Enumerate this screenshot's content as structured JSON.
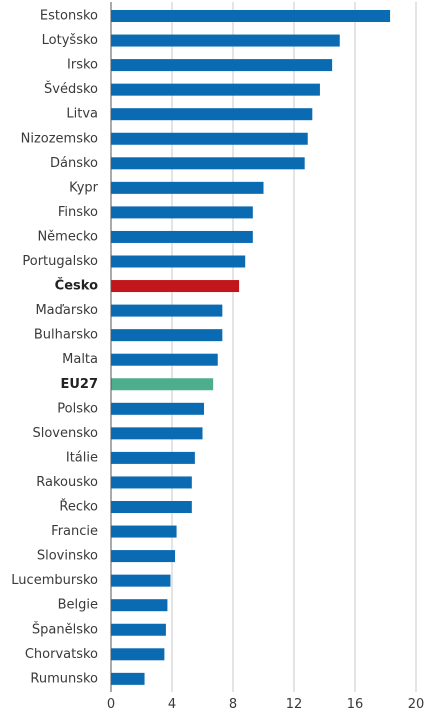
{
  "chart_data": {
    "type": "bar",
    "orientation": "horizontal",
    "title": "",
    "xlabel": "",
    "ylabel": "",
    "xlim": [
      0,
      20
    ],
    "xticks": [
      0,
      4,
      8,
      12,
      16,
      20
    ],
    "grid": true,
    "colors": {
      "default": "#0a6ab2",
      "highlight": "#c1161b",
      "aggregate": "#4cae8c"
    },
    "categories": [
      "Estonsko",
      "Lotyšsko",
      "Irsko",
      "Švédsko",
      "Litva",
      "Nizozemsko",
      "Dánsko",
      "Kypr",
      "Finsko",
      "Německo",
      "Portugalsko",
      "Česko",
      "Maďarsko",
      "Bulharsko",
      "Malta",
      "EU27",
      "Polsko",
      "Slovensko",
      "Itálie",
      "Rakousko",
      "Řecko",
      "Francie",
      "Slovinsko",
      "Lucembursko",
      "Belgie",
      "Španělsko",
      "Chorvatsko",
      "Rumunsko"
    ],
    "values": [
      18.3,
      15.0,
      14.5,
      13.7,
      13.2,
      12.9,
      12.7,
      10.0,
      9.3,
      9.3,
      8.8,
      8.4,
      7.3,
      7.3,
      7.0,
      6.7,
      6.1,
      6.0,
      5.5,
      5.3,
      5.3,
      4.3,
      4.2,
      3.9,
      3.7,
      3.6,
      3.5,
      2.2
    ],
    "highlights": {
      "Česko": "highlight",
      "EU27": "aggregate"
    },
    "bold_labels": [
      "Česko",
      "EU27"
    ]
  }
}
